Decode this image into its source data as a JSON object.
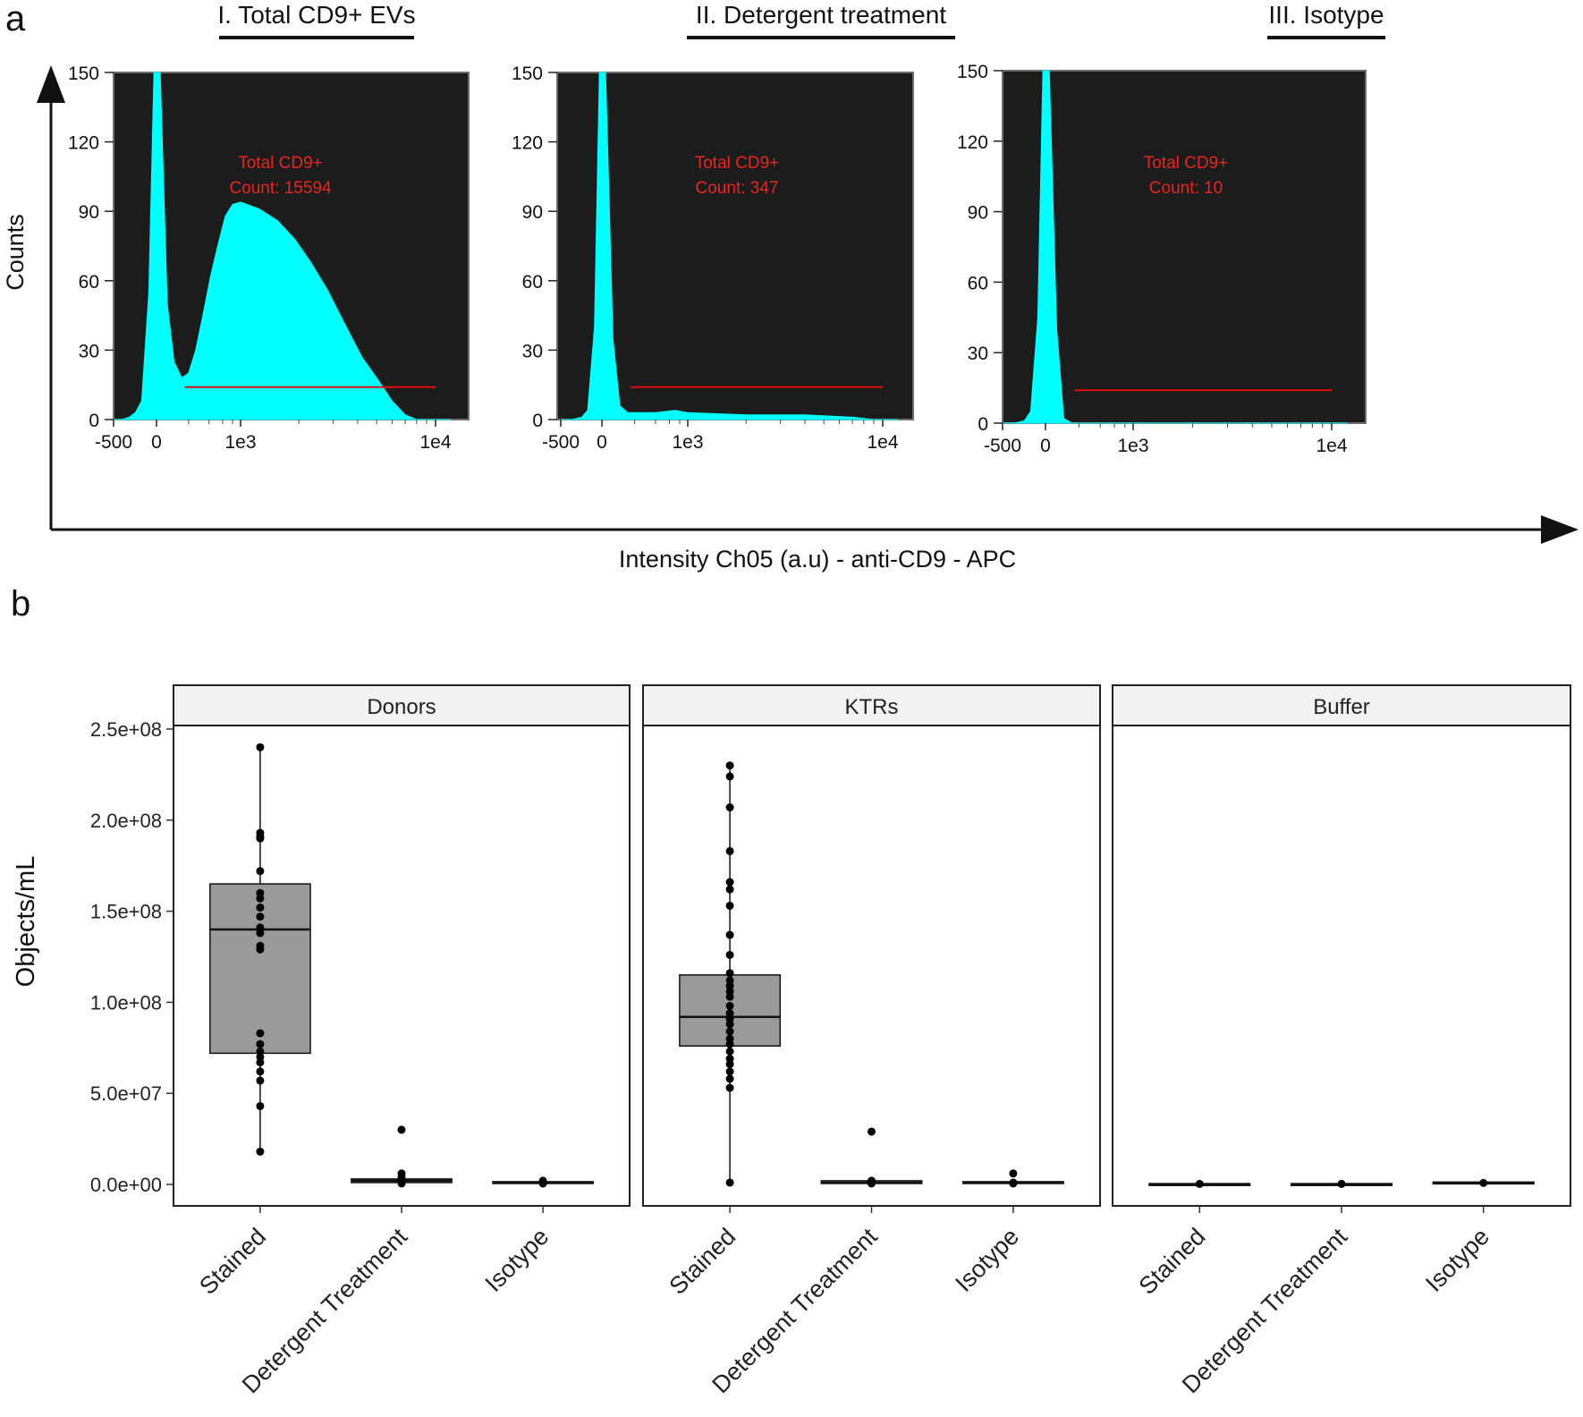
{
  "panel_labels": {
    "a": "a",
    "b": "b"
  },
  "panel_a": {
    "y_axis_label": "Counts",
    "x_axis_label": "Intensity Ch05 (a.u) -  anti-CD9 - APC",
    "y_ticks": [
      "150",
      "120",
      "90",
      "60",
      "30",
      "0"
    ],
    "x_ticks": [
      "-500",
      "0",
      "1e3",
      "1e4"
    ]
  },
  "panel_b": {
    "y_axis_label": "Objects/mL",
    "y_ticks": [
      "2.5e+08",
      "2.0e+08",
      "1.5e+08",
      "1.0e+08",
      "5.0e+07",
      "0.0e+00"
    ],
    "facets": [
      "Donors",
      "KTRs",
      "Buffer"
    ],
    "categories": [
      "Stained",
      "Detergent Treatment",
      "Isotype"
    ]
  },
  "colors": {
    "histogram_fill": "#00ffff",
    "plot_background": "#1c1c1c",
    "gate_line": "#e01010",
    "gate_text": "#e8261f",
    "box_fill": "#9a9a9a",
    "strip_fill": "#f2f2f2"
  },
  "chart_data": [
    {
      "type": "histogram",
      "title": "I. Total CD9+ EVs",
      "gate_label": "Total CD9+",
      "gate_count": "Count: 15594",
      "xlabel": "Intensity Ch05 (a.u) -  anti-CD9 - APC",
      "ylabel": "Counts",
      "ylim": [
        0,
        150
      ],
      "x_scale": "hyperlog",
      "bins": [
        {
          "x": -500,
          "y": 0
        },
        {
          "x": -350,
          "y": 0
        },
        {
          "x": -250,
          "y": 1
        },
        {
          "x": -180,
          "y": 3
        },
        {
          "x": -120,
          "y": 8
        },
        {
          "x": -60,
          "y": 55
        },
        {
          "x": -20,
          "y": 150
        },
        {
          "x": 20,
          "y": 150
        },
        {
          "x": 60,
          "y": 50
        },
        {
          "x": 100,
          "y": 25
        },
        {
          "x": 150,
          "y": 18
        },
        {
          "x": 200,
          "y": 20
        },
        {
          "x": 260,
          "y": 30
        },
        {
          "x": 330,
          "y": 45
        },
        {
          "x": 420,
          "y": 62
        },
        {
          "x": 520,
          "y": 75
        },
        {
          "x": 650,
          "y": 88
        },
        {
          "x": 800,
          "y": 93
        },
        {
          "x": 1000,
          "y": 94
        },
        {
          "x": 1250,
          "y": 91
        },
        {
          "x": 1550,
          "y": 86
        },
        {
          "x": 1900,
          "y": 78
        },
        {
          "x": 2300,
          "y": 68
        },
        {
          "x": 2800,
          "y": 56
        },
        {
          "x": 3400,
          "y": 42
        },
        {
          "x": 4200,
          "y": 27
        },
        {
          "x": 5000,
          "y": 18
        },
        {
          "x": 6000,
          "y": 8
        },
        {
          "x": 7000,
          "y": 2
        },
        {
          "x": 8000,
          "y": 0
        },
        {
          "x": 12000,
          "y": 0
        }
      ],
      "gate": {
        "x_start": 100,
        "x_end": 10000,
        "y": 14
      }
    },
    {
      "type": "histogram",
      "title": "II. Detergent treatment",
      "gate_label": "Total CD9+",
      "gate_count": "Count: 347",
      "xlabel": "Intensity Ch05 (a.u) -  anti-CD9 - APC",
      "ylabel": "Counts",
      "ylim": [
        0,
        150
      ],
      "x_scale": "hyperlog",
      "bins": [
        {
          "x": -500,
          "y": 0
        },
        {
          "x": -300,
          "y": 0
        },
        {
          "x": -180,
          "y": 1
        },
        {
          "x": -120,
          "y": 4
        },
        {
          "x": -60,
          "y": 40
        },
        {
          "x": -20,
          "y": 150
        },
        {
          "x": 20,
          "y": 150
        },
        {
          "x": 60,
          "y": 35
        },
        {
          "x": 100,
          "y": 6
        },
        {
          "x": 150,
          "y": 3
        },
        {
          "x": 250,
          "y": 3
        },
        {
          "x": 400,
          "y": 3
        },
        {
          "x": 700,
          "y": 4
        },
        {
          "x": 1000,
          "y": 3
        },
        {
          "x": 2000,
          "y": 2
        },
        {
          "x": 4000,
          "y": 2
        },
        {
          "x": 7000,
          "y": 1
        },
        {
          "x": 9000,
          "y": 0
        },
        {
          "x": 12000,
          "y": 0
        }
      ],
      "gate": {
        "x_start": 100,
        "x_end": 10000,
        "y": 14
      }
    },
    {
      "type": "histogram",
      "title": "III. Isotype",
      "gate_label": "Total CD9+",
      "gate_count": "Count: 10",
      "xlabel": "Intensity Ch05 (a.u) -  anti-CD9 - APC",
      "ylabel": "Counts",
      "ylim": [
        0,
        150
      ],
      "x_scale": "hyperlog",
      "bins": [
        {
          "x": -500,
          "y": 0
        },
        {
          "x": -300,
          "y": 0
        },
        {
          "x": -180,
          "y": 1
        },
        {
          "x": -120,
          "y": 5
        },
        {
          "x": -60,
          "y": 45
        },
        {
          "x": -20,
          "y": 150
        },
        {
          "x": 20,
          "y": 150
        },
        {
          "x": 60,
          "y": 40
        },
        {
          "x": 100,
          "y": 2
        },
        {
          "x": 150,
          "y": 0
        },
        {
          "x": 12000,
          "y": 0
        }
      ],
      "gate": {
        "x_start": 100,
        "x_end": 10000,
        "y": 14
      }
    },
    {
      "type": "box",
      "ylabel": "Objects/mL",
      "ylim": [
        0,
        250000000
      ],
      "categories": [
        "Stained",
        "Detergent Treatment",
        "Isotype"
      ],
      "facets": [
        {
          "name": "Donors",
          "boxes": [
            {
              "category": "Stained",
              "q1": 72000000,
              "median": 140000000,
              "q3": 165000000,
              "min": 18000000,
              "max": 240000000,
              "points": [
                240000000,
                193000000,
                191000000,
                190000000,
                172000000,
                160000000,
                157000000,
                152000000,
                147000000,
                141000000,
                138000000,
                131000000,
                129000000,
                83000000,
                77000000,
                73000000,
                70000000,
                67000000,
                62000000,
                57000000,
                43000000,
                18000000
              ]
            },
            {
              "category": "Detergent Treatment",
              "q1": 1000000,
              "median": 2000000,
              "q3": 3000000,
              "min": 0,
              "max": 6000000,
              "points": [
                30000000,
                6000000,
                4000000,
                3000000,
                2000000,
                1000000,
                500000
              ]
            },
            {
              "category": "Isotype",
              "q1": 500000,
              "median": 1000000,
              "q3": 1500000,
              "min": 0,
              "max": 2000000,
              "points": [
                2000000,
                1000000,
                500000
              ]
            }
          ]
        },
        {
          "name": "KTRs",
          "boxes": [
            {
              "category": "Stained",
              "q1": 76000000,
              "median": 92000000,
              "q3": 115000000,
              "min": 1000000,
              "max": 230000000,
              "points": [
                230000000,
                224000000,
                207000000,
                183000000,
                166000000,
                162000000,
                153000000,
                137000000,
                126000000,
                116000000,
                112000000,
                109000000,
                106000000,
                103000000,
                98000000,
                94000000,
                91000000,
                88000000,
                84000000,
                80000000,
                77000000,
                73000000,
                69000000,
                66000000,
                62000000,
                58000000,
                53000000,
                1000000
              ]
            },
            {
              "category": "Detergent Treatment",
              "q1": 500000,
              "median": 1000000,
              "q3": 2000000,
              "min": 0,
              "max": 3000000,
              "points": [
                29000000,
                2000000,
                1000000,
                500000
              ]
            },
            {
              "category": "Isotype",
              "q1": 500000,
              "median": 1000000,
              "q3": 1500000,
              "min": 0,
              "max": 2000000,
              "points": [
                6000000,
                1000000,
                500000
              ]
            }
          ]
        },
        {
          "name": "Buffer",
          "boxes": [
            {
              "category": "Stained",
              "q1": 0,
              "median": 200000,
              "q3": 400000,
              "min": 0,
              "max": 500000,
              "points": [
                300000
              ]
            },
            {
              "category": "Detergent Treatment",
              "q1": 0,
              "median": 200000,
              "q3": 400000,
              "min": 0,
              "max": 500000,
              "points": [
                300000
              ]
            },
            {
              "category": "Isotype",
              "q1": 300000,
              "median": 800000,
              "q3": 1300000,
              "min": 0,
              "max": 1500000,
              "points": [
                800000
              ]
            }
          ]
        }
      ]
    }
  ]
}
